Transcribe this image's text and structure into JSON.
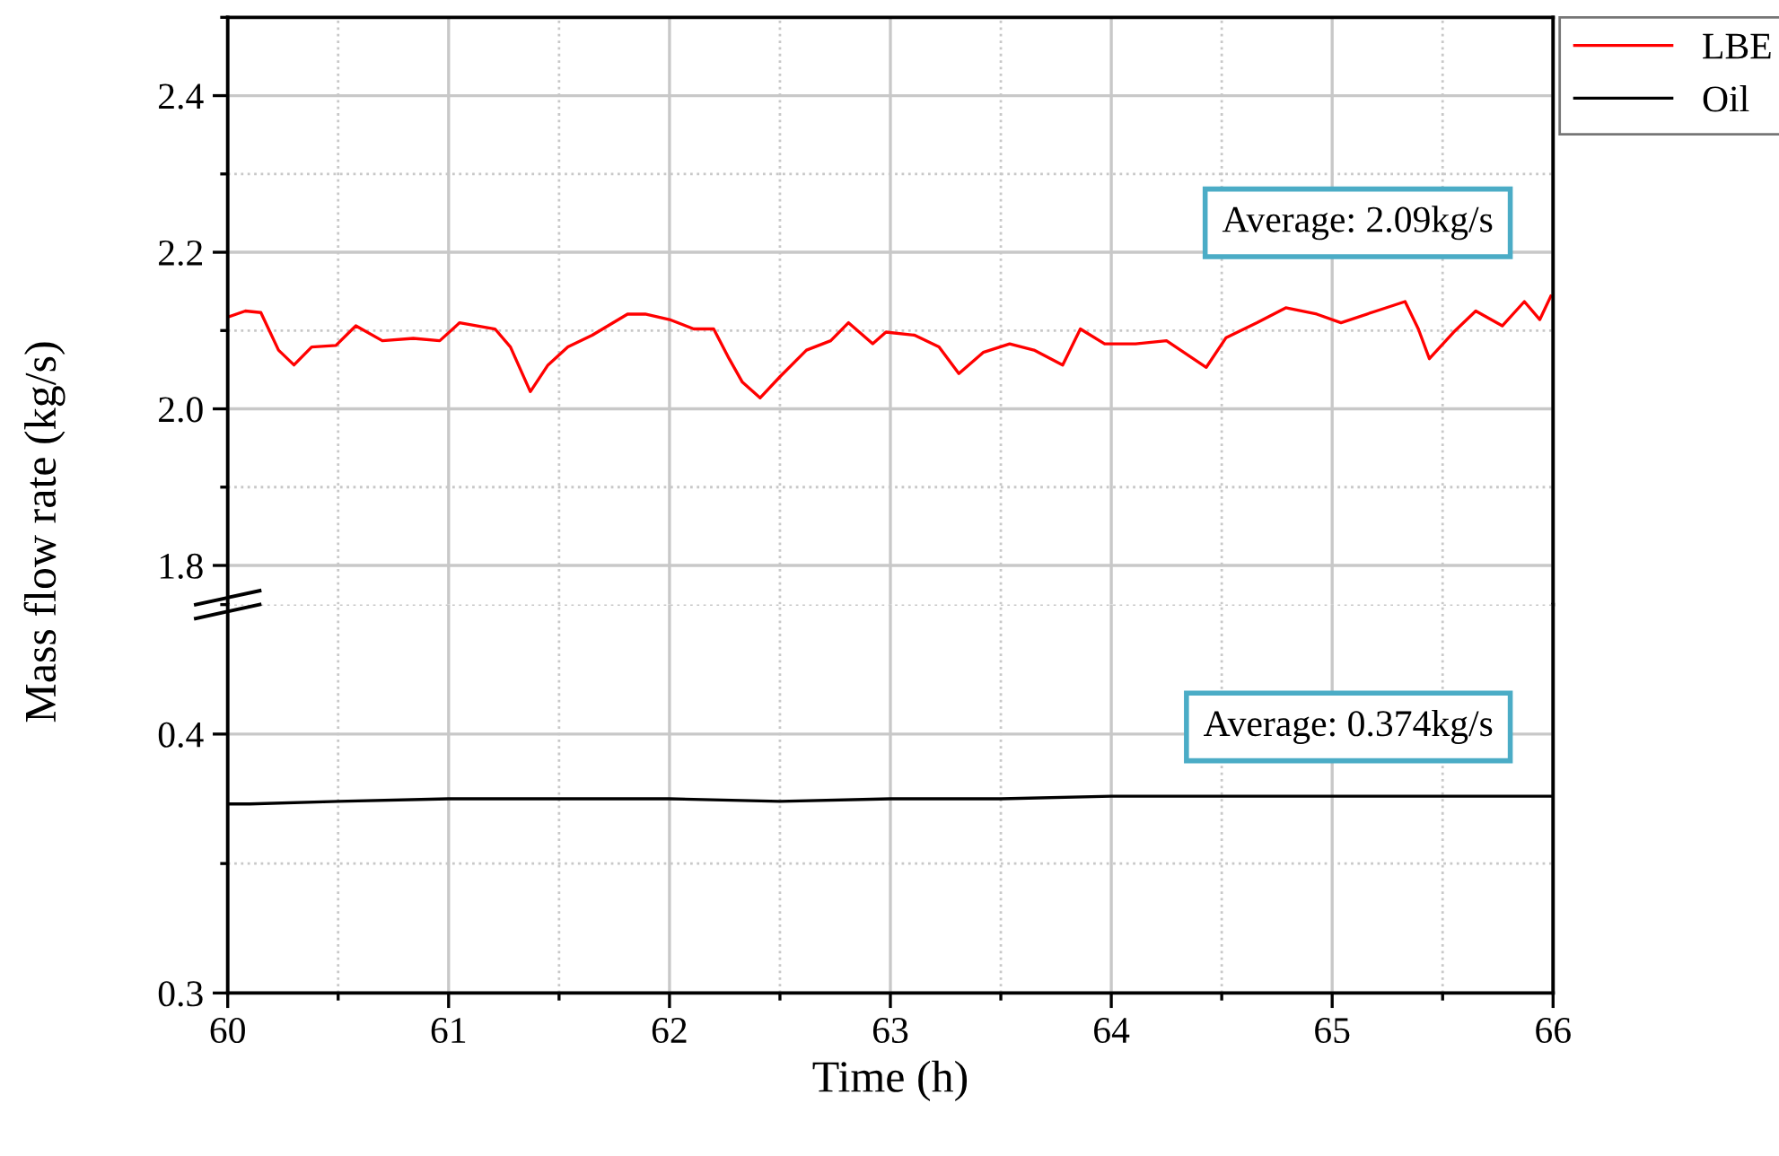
{
  "chart_data": [
    {
      "type": "line",
      "ylabel": "Mass flow rate (kg/s)",
      "xlim": [
        60,
        66
      ],
      "xticks": [
        60,
        61,
        62,
        63,
        64,
        65,
        66
      ],
      "ylim": [
        1.75,
        2.5
      ],
      "yticks": [
        1.8,
        {
          "value": 2.0,
          "label": "2.0"
        },
        2.2,
        2.4
      ],
      "tick_labels": "y",
      "grid": true,
      "legend": "top right",
      "annotations": [
        "Average: 2.09kg/s"
      ],
      "series": [
        {
          "name": "LBE",
          "color": "#ff0000",
          "x": [
            60.0,
            60.08,
            60.15,
            60.23,
            60.3,
            60.38,
            60.49,
            60.58,
            60.7,
            60.84,
            60.96,
            61.05,
            61.21,
            61.28,
            61.37,
            61.45,
            61.54,
            61.65,
            61.81,
            61.89,
            62.0,
            62.11,
            62.2,
            62.27,
            62.33,
            62.41,
            62.5,
            62.62,
            62.73,
            62.81,
            62.92,
            62.98,
            63.11,
            63.22,
            63.31,
            63.42,
            63.54,
            63.65,
            63.78,
            63.86,
            63.97,
            64.11,
            64.25,
            64.43,
            64.52,
            64.66,
            64.79,
            64.93,
            65.04,
            65.2,
            65.33,
            65.39,
            65.44,
            65.55,
            65.65,
            65.77,
            65.87,
            65.94,
            65.99
          ],
          "values": [
            2.117,
            2.125,
            2.123,
            2.075,
            2.056,
            2.079,
            2.081,
            2.106,
            2.087,
            2.09,
            2.087,
            2.11,
            2.102,
            2.079,
            2.022,
            2.056,
            2.079,
            2.094,
            2.121,
            2.121,
            2.114,
            2.102,
            2.102,
            2.064,
            2.034,
            2.014,
            2.041,
            2.075,
            2.087,
            2.11,
            2.083,
            2.098,
            2.094,
            2.079,
            2.045,
            2.072,
            2.083,
            2.075,
            2.056,
            2.102,
            2.083,
            2.083,
            2.087,
            2.053,
            2.091,
            2.11,
            2.129,
            2.121,
            2.11,
            2.125,
            2.137,
            2.102,
            2.064,
            2.098,
            2.125,
            2.106,
            2.137,
            2.114,
            2.144
          ]
        }
      ]
    },
    {
      "type": "line",
      "xlabel": "Time (h)",
      "xlim": [
        60,
        66
      ],
      "xticks": [
        60,
        61,
        62,
        63,
        64,
        65,
        66
      ],
      "ylim": [
        0.3,
        0.45
      ],
      "yticks": [
        0.3,
        0.4
      ],
      "grid": true,
      "annotations": [
        "Average: 0.374kg/s"
      ],
      "series": [
        {
          "name": "Oil",
          "color": "#000000",
          "x": [
            60.0,
            60.1,
            60.5,
            61.0,
            61.5,
            62.0,
            62.5,
            63.0,
            63.5,
            64.0,
            64.5,
            65.0,
            65.5,
            66.0
          ],
          "values": [
            0.373,
            0.373,
            0.374,
            0.375,
            0.375,
            0.375,
            0.374,
            0.375,
            0.375,
            0.376,
            0.376,
            0.376,
            0.376,
            0.376
          ]
        }
      ]
    }
  ]
}
